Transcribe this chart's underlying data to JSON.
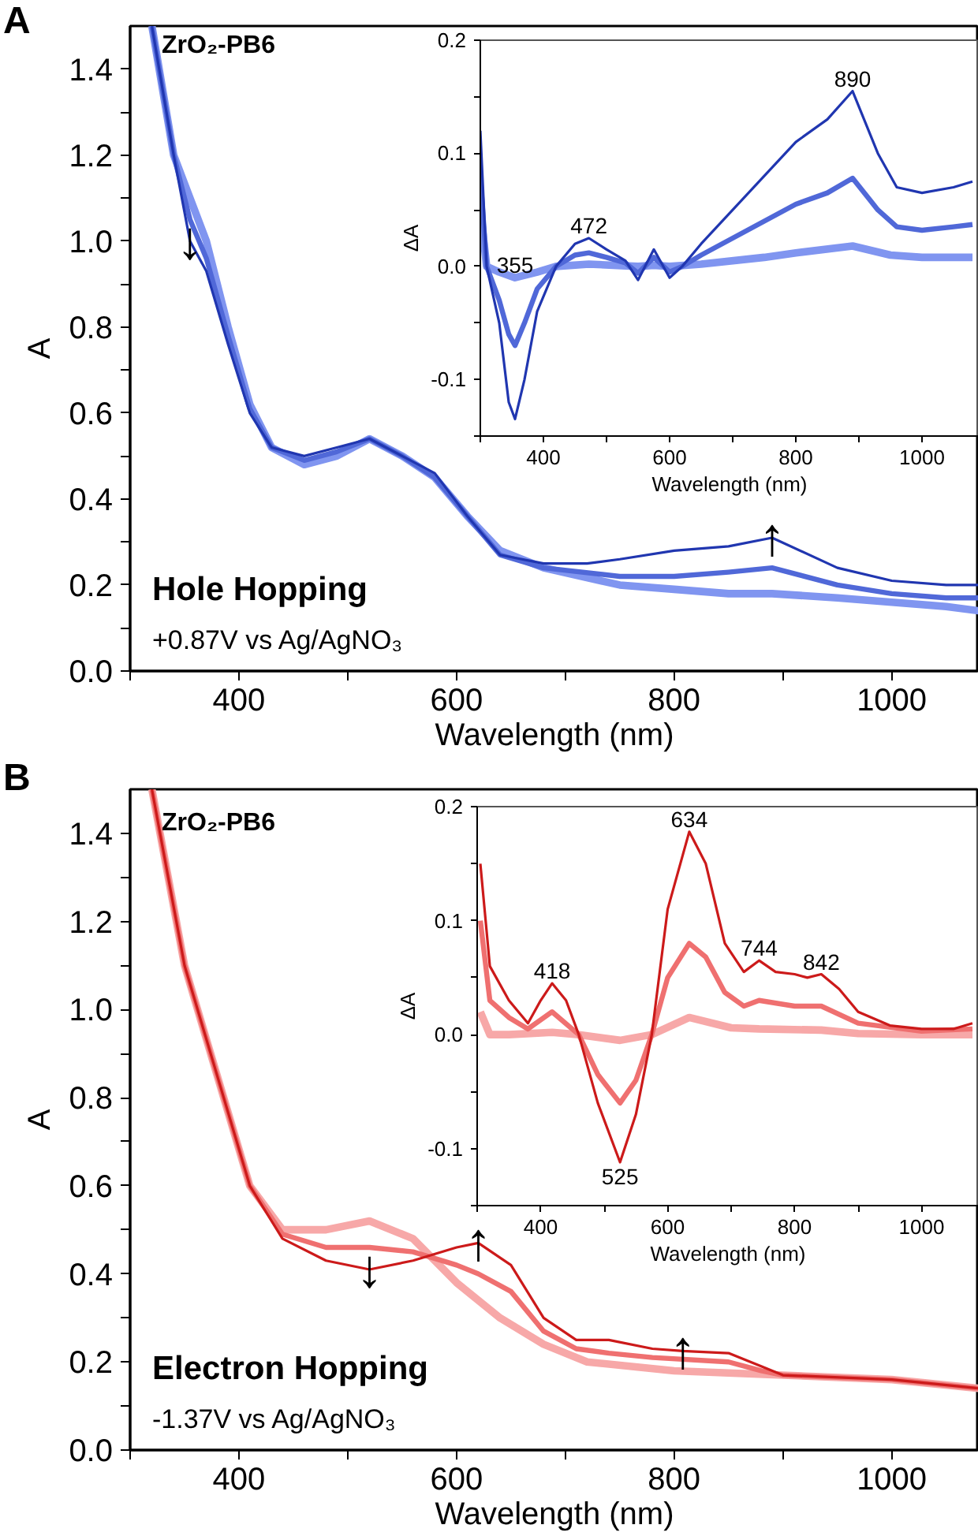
{
  "chart_data": [
    {
      "type": "line",
      "xlabel": "Wavelength (nm)",
      "ylabel": "A",
      "grid": false,
      "xlim": [
        300,
        1080
      ],
      "ylim": [
        0,
        1.5
      ],
      "xticks": [
        {
          "value": 300,
          "label": null
        },
        400,
        {
          "value": 500,
          "label": null
        },
        600,
        {
          "value": 700,
          "label": null
        },
        800,
        {
          "value": 900,
          "label": null
        },
        1000
      ],
      "yticks": [
        {
          "value": 0,
          "label": "0.0"
        },
        {
          "value": 0.1,
          "label": null
        },
        0.2,
        {
          "value": 0.3,
          "label": null
        },
        0.4,
        {
          "value": 0.5,
          "label": null
        },
        0.6,
        {
          "value": 0.7,
          "label": null
        },
        0.8,
        {
          "value": 0.9,
          "label": null
        },
        {
          "value": 1,
          "label": "1.0"
        },
        {
          "value": 1.1,
          "label": null
        },
        1.2,
        {
          "value": 1.3,
          "label": null
        },
        1.4
      ],
      "annotations": [
        "A",
        "ZrO₂-PB6",
        "Hole Hopping",
        "+0.87V vs Ag/AgNO₃",
        {
          "text": "↓",
          "x": 355,
          "y": 1.0
        },
        {
          "text": "↑",
          "x": 890,
          "y": 0.31
        }
      ],
      "series": [
        {
          "color": "#8095f0",
          "x": [
            320,
            340,
            355,
            370,
            390,
            410,
            430,
            460,
            490,
            520,
            550,
            580,
            610,
            640,
            680,
            750,
            800,
            850,
            890,
            950,
            1000,
            1050,
            1080
          ],
          "values": [
            1.5,
            1.2,
            1.1,
            1.0,
            0.8,
            0.62,
            0.52,
            0.48,
            0.5,
            0.54,
            0.5,
            0.45,
            0.36,
            0.28,
            0.24,
            0.2,
            0.19,
            0.18,
            0.18,
            0.17,
            0.16,
            0.15,
            0.14
          ]
        },
        {
          "color": "#5068d8",
          "x": [
            320,
            340,
            355,
            370,
            390,
            410,
            430,
            460,
            490,
            520,
            550,
            580,
            610,
            640,
            680,
            750,
            800,
            850,
            890,
            950,
            1000,
            1050,
            1080
          ],
          "values": [
            1.5,
            1.2,
            1.05,
            0.96,
            0.78,
            0.61,
            0.52,
            0.49,
            0.51,
            0.54,
            0.5,
            0.45,
            0.36,
            0.27,
            0.24,
            0.22,
            0.22,
            0.23,
            0.24,
            0.2,
            0.18,
            0.17,
            0.17
          ]
        },
        {
          "color": "#2036b0",
          "x": [
            320,
            340,
            355,
            370,
            390,
            410,
            430,
            460,
            490,
            520,
            550,
            580,
            610,
            640,
            680,
            720,
            750,
            800,
            850,
            890,
            950,
            1000,
            1050,
            1080
          ],
          "values": [
            1.5,
            1.2,
            1.0,
            0.93,
            0.76,
            0.6,
            0.52,
            0.5,
            0.52,
            0.54,
            0.5,
            0.46,
            0.36,
            0.27,
            0.25,
            0.25,
            0.26,
            0.28,
            0.29,
            0.31,
            0.24,
            0.21,
            0.2,
            0.2
          ]
        }
      ]
    },
    {
      "type": "line",
      "xlabel": "Wavelength (nm)",
      "ylabel": "ΔA",
      "grid": false,
      "xlim": [
        300,
        1090
      ],
      "ylim": [
        -0.15,
        0.2
      ],
      "xticks": [
        {
          "value": 300,
          "label": null
        },
        400,
        {
          "value": 500,
          "label": null
        },
        600,
        {
          "value": 700,
          "label": null
        },
        800,
        {
          "value": 900,
          "label": null
        },
        1000
      ],
      "yticks": [
        {
          "value": -0.15,
          "label": null
        },
        -0.1,
        {
          "value": -0.05,
          "label": null
        },
        {
          "value": 0,
          "label": "0.0"
        },
        {
          "value": 0.05,
          "label": null
        },
        0.1,
        {
          "value": 0.15,
          "label": null
        },
        0.2
      ],
      "annotations": [
        {
          "text": "355",
          "x": 355,
          "y": -0.01
        },
        {
          "text": "472",
          "x": 472,
          "y": 0.025
        },
        {
          "text": "890",
          "x": 890,
          "y": 0.155
        }
      ],
      "series": [
        {
          "color": "#8095f0",
          "x": [
            300,
            310,
            330,
            355,
            390,
            420,
            472,
            550,
            575,
            600,
            650,
            750,
            800,
            890,
            950,
            1000,
            1080
          ],
          "values": [
            0.05,
            0,
            -0.005,
            -0.01,
            -0.005,
            0,
            0.002,
            0,
            0.001,
            0,
            0.002,
            0.008,
            0.012,
            0.018,
            0.01,
            0.008,
            0.008
          ]
        },
        {
          "color": "#5068d8",
          "x": [
            300,
            310,
            330,
            345,
            355,
            370,
            390,
            420,
            450,
            472,
            500,
            530,
            550,
            575,
            600,
            620,
            650,
            700,
            750,
            800,
            850,
            890,
            930,
            960,
            1000,
            1050,
            1080
          ],
          "values": [
            0.08,
            0,
            -0.03,
            -0.06,
            -0.07,
            -0.05,
            -0.02,
            0,
            0.01,
            0.012,
            0.008,
            0.003,
            -0.006,
            0.008,
            -0.005,
            0,
            0.01,
            0.025,
            0.04,
            0.055,
            0.065,
            0.078,
            0.05,
            0.035,
            0.032,
            0.035,
            0.037
          ]
        },
        {
          "color": "#2036b0",
          "x": [
            300,
            310,
            330,
            345,
            355,
            370,
            390,
            420,
            450,
            472,
            500,
            530,
            550,
            575,
            600,
            620,
            650,
            700,
            750,
            800,
            850,
            890,
            930,
            960,
            1000,
            1050,
            1080
          ],
          "values": [
            0.12,
            0,
            -0.05,
            -0.12,
            -0.135,
            -0.1,
            -0.04,
            0,
            0.02,
            0.025,
            0.015,
            0.005,
            -0.012,
            0.015,
            -0.01,
            0,
            0.02,
            0.05,
            0.08,
            0.11,
            0.13,
            0.155,
            0.1,
            0.07,
            0.065,
            0.07,
            0.075
          ]
        }
      ]
    },
    {
      "type": "line",
      "xlabel": "Wavelength (nm)",
      "ylabel": "A",
      "grid": false,
      "xlim": [
        300,
        1080
      ],
      "ylim": [
        0,
        1.5
      ],
      "xticks": [
        {
          "value": 300,
          "label": null
        },
        400,
        {
          "value": 500,
          "label": null
        },
        600,
        {
          "value": 700,
          "label": null
        },
        800,
        {
          "value": 900,
          "label": null
        },
        1000
      ],
      "yticks": [
        {
          "value": 0,
          "label": "0.0"
        },
        {
          "value": 0.1,
          "label": null
        },
        0.2,
        {
          "value": 0.3,
          "label": null
        },
        0.4,
        {
          "value": 0.5,
          "label": null
        },
        0.6,
        {
          "value": 0.7,
          "label": null
        },
        0.8,
        {
          "value": 0.9,
          "label": null
        },
        {
          "value": 1,
          "label": "1.0"
        },
        {
          "value": 1.1,
          "label": null
        },
        1.2,
        {
          "value": 1.3,
          "label": null
        },
        1.4
      ],
      "annotations": [
        "B",
        "ZrO₂-PB6",
        "Electron Hopping",
        "-1.37V vs Ag/AgNO₃",
        {
          "text": "↓",
          "x": 520,
          "y": 0.41
        },
        {
          "text": "↑",
          "x": 620,
          "y": 0.47
        },
        {
          "text": "↑",
          "x": 808,
          "y": 0.225
        }
      ],
      "series": [
        {
          "color": "#f7a8a8",
          "x": [
            320,
            350,
            380,
            410,
            440,
            480,
            520,
            560,
            600,
            640,
            680,
            720,
            800,
            900,
            1000,
            1080
          ],
          "values": [
            1.5,
            1.1,
            0.85,
            0.6,
            0.5,
            0.5,
            0.52,
            0.48,
            0.38,
            0.3,
            0.24,
            0.2,
            0.18,
            0.17,
            0.16,
            0.14
          ]
        },
        {
          "color": "#ef7070",
          "x": [
            320,
            350,
            380,
            410,
            440,
            480,
            520,
            560,
            600,
            620,
            650,
            680,
            710,
            740,
            780,
            850,
            880,
            900,
            1000,
            1080
          ],
          "values": [
            1.5,
            1.1,
            0.85,
            0.6,
            0.49,
            0.46,
            0.46,
            0.45,
            0.42,
            0.4,
            0.36,
            0.27,
            0.23,
            0.22,
            0.21,
            0.2,
            0.18,
            0.17,
            0.16,
            0.14
          ]
        },
        {
          "color": "#cc1a1a",
          "x": [
            320,
            350,
            380,
            410,
            440,
            480,
            520,
            560,
            600,
            620,
            650,
            680,
            710,
            740,
            780,
            808,
            850,
            880,
            900,
            1000,
            1080
          ],
          "values": [
            1.5,
            1.1,
            0.85,
            0.6,
            0.48,
            0.43,
            0.41,
            0.43,
            0.46,
            0.47,
            0.42,
            0.3,
            0.25,
            0.25,
            0.23,
            0.225,
            0.22,
            0.19,
            0.17,
            0.16,
            0.14
          ]
        }
      ]
    },
    {
      "type": "line",
      "xlabel": "Wavelength (nm)",
      "ylabel": "ΔA",
      "grid": false,
      "xlim": [
        300,
        1090
      ],
      "ylim": [
        -0.15,
        0.2
      ],
      "xticks": [
        {
          "value": 300,
          "label": null
        },
        400,
        {
          "value": 500,
          "label": null
        },
        600,
        {
          "value": 700,
          "label": null
        },
        800,
        {
          "value": 900,
          "label": null
        },
        1000
      ],
      "yticks": [
        {
          "value": -0.15,
          "label": null
        },
        -0.1,
        {
          "value": -0.05,
          "label": null
        },
        {
          "value": 0,
          "label": "0.0"
        },
        {
          "value": 0.05,
          "label": null
        },
        0.1,
        {
          "value": 0.15,
          "label": null
        },
        0.2
      ],
      "annotations": [
        {
          "text": "418",
          "x": 418,
          "y": 0.045
        },
        {
          "text": "634",
          "x": 634,
          "y": 0.178
        },
        {
          "text": "744",
          "x": 744,
          "y": 0.065
        },
        {
          "text": "842",
          "x": 842,
          "y": 0.053
        },
        {
          "text": "525",
          "x": 525,
          "y": -0.112
        }
      ],
      "series": [
        {
          "color": "#f7a8a8",
          "x": [
            305,
            320,
            350,
            418,
            460,
            525,
            575,
            634,
            700,
            744,
            842,
            900,
            1000,
            1080
          ],
          "values": [
            0.02,
            0,
            0,
            0.002,
            0,
            -0.005,
            0,
            0.015,
            0.006,
            0.005,
            0.004,
            0.001,
            0,
            0
          ]
        },
        {
          "color": "#ef7070",
          "x": [
            305,
            320,
            350,
            380,
            418,
            460,
            490,
            525,
            550,
            575,
            600,
            634,
            660,
            690,
            720,
            744,
            800,
            842,
            900,
            1000,
            1080
          ],
          "values": [
            0.1,
            0.03,
            0.015,
            0.005,
            0.02,
            0,
            -0.035,
            -0.06,
            -0.04,
            0,
            0.05,
            0.08,
            0.068,
            0.037,
            0.025,
            0.03,
            0.025,
            0.025,
            0.01,
            0.003,
            0.005
          ]
        },
        {
          "color": "#cc1a1a",
          "x": [
            305,
            320,
            350,
            380,
            400,
            418,
            440,
            460,
            490,
            525,
            550,
            575,
            600,
            634,
            660,
            690,
            720,
            744,
            770,
            800,
            820,
            842,
            870,
            900,
            950,
            1000,
            1050,
            1080
          ],
          "values": [
            0.15,
            0.06,
            0.03,
            0.01,
            0.03,
            0.045,
            0.03,
            0,
            -0.06,
            -0.112,
            -0.07,
            0,
            0.11,
            0.178,
            0.15,
            0.08,
            0.055,
            0.065,
            0.055,
            0.053,
            0.05,
            0.053,
            0.04,
            0.02,
            0.008,
            0.005,
            0.005,
            0.01
          ]
        }
      ]
    }
  ]
}
